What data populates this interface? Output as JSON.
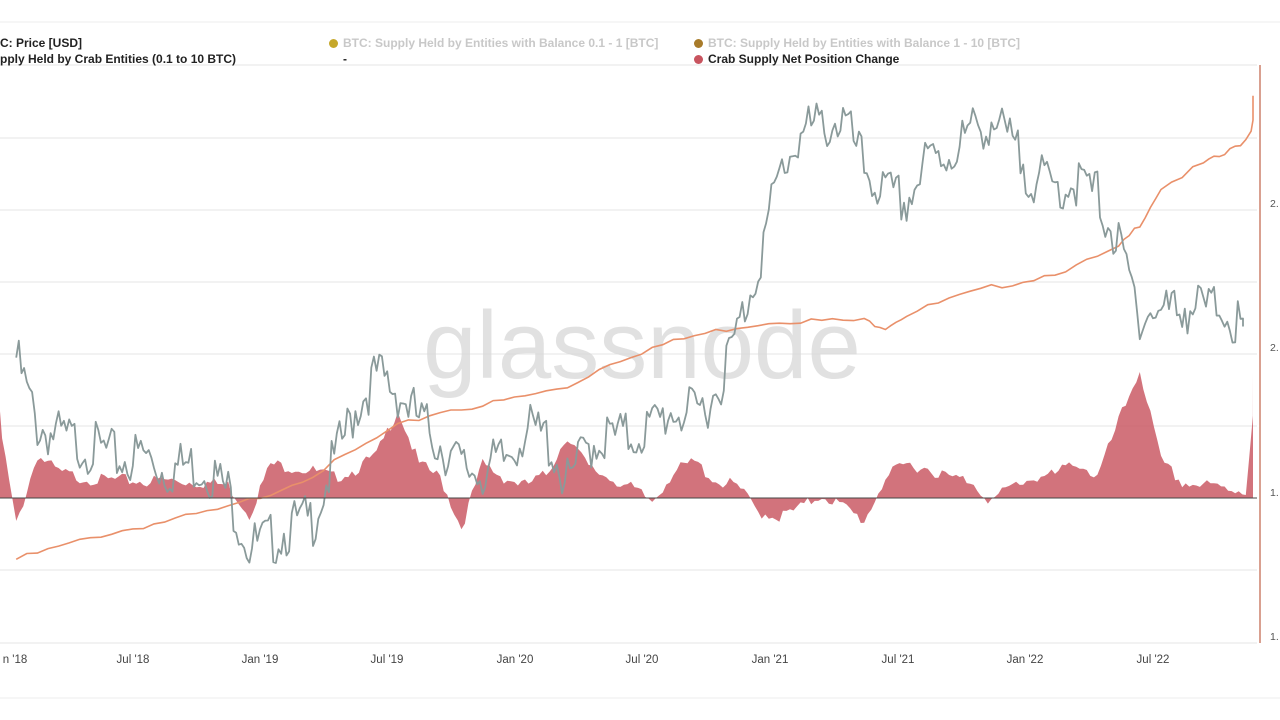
{
  "legend": {
    "price": "C: Price [USD]",
    "crab_supply": "pply Held by Crab Entities (0.1 to 10 BTC)",
    "bal_01_1": "BTC: Supply Held by Entities with Balance 0.1 - 1 [BTC]",
    "bal_1_10": "BTC: Supply Held by Entities with Balance 1 - 10 [BTC]",
    "net_change": "Crab Supply Net Position Change",
    "dash": "-"
  },
  "watermark": "glassnode",
  "colors": {
    "price": "#8a9a9a",
    "crab_supply": "#e9906a",
    "net_change": "#c8545f",
    "bal_01_1": "#c6a82b",
    "bal_1_10": "#a87b2a",
    "grid": "#e6e6e6",
    "axis_line": "#d9a090"
  },
  "chart_data": {
    "type": "area",
    "x_tick_labels": [
      "n '18",
      "Jul '18",
      "Jan '19",
      "Jul '19",
      "Jan '20",
      "Jul '20",
      "Jan '21",
      "Jul '21",
      "Jan '22",
      "Jul '22"
    ],
    "right_axis_tick_labels": [
      "2.",
      "2.",
      "1.",
      "1."
    ],
    "series": [
      {
        "name": "C: Price [USD]",
        "x": [
          "2018-01",
          "2018-02",
          "2018-03",
          "2018-04",
          "2018-05",
          "2018-06",
          "2018-07",
          "2018-08",
          "2018-09",
          "2018-10",
          "2018-11",
          "2018-12",
          "2019-01",
          "2019-02",
          "2019-03",
          "2019-04",
          "2019-05",
          "2019-06",
          "2019-07",
          "2019-08",
          "2019-09",
          "2019-10",
          "2019-11",
          "2019-12",
          "2020-01",
          "2020-02",
          "2020-03",
          "2020-04",
          "2020-05",
          "2020-06",
          "2020-07",
          "2020-08",
          "2020-09",
          "2020-10",
          "2020-11",
          "2020-12",
          "2021-01",
          "2021-02",
          "2021-03",
          "2021-04",
          "2021-05",
          "2021-06",
          "2021-07",
          "2021-08",
          "2021-09",
          "2021-10",
          "2021-11",
          "2021-12",
          "2022-01",
          "2022-02",
          "2022-03",
          "2022-04",
          "2022-05",
          "2022-06",
          "2022-07",
          "2022-08",
          "2022-09",
          "2022-10",
          "2022-11"
        ],
        "values": [
          0.65,
          0.45,
          0.42,
          0.4,
          0.38,
          0.35,
          0.37,
          0.32,
          0.34,
          0.33,
          0.26,
          0.1,
          0.12,
          0.16,
          0.18,
          0.35,
          0.5,
          0.6,
          0.55,
          0.47,
          0.4,
          0.33,
          0.32,
          0.35,
          0.44,
          0.42,
          0.28,
          0.4,
          0.42,
          0.42,
          0.45,
          0.5,
          0.48,
          0.55,
          0.72,
          0.92,
          1.18,
          1.3,
          1.32,
          1.34,
          1.2,
          1.12,
          1.1,
          1.22,
          1.24,
          1.3,
          1.34,
          1.26,
          1.17,
          1.14,
          1.16,
          1.12,
          0.97,
          0.78,
          0.78,
          0.8,
          0.79,
          0.8,
          0.7
        ]
      },
      {
        "name": "pply Held by Crab Entities (0.1 to 10 BTC)",
        "x": [
          "2018-01",
          "2018-03",
          "2018-05",
          "2018-07",
          "2018-09",
          "2018-11",
          "2019-01",
          "2019-03",
          "2019-05",
          "2019-07",
          "2019-09",
          "2019-11",
          "2020-01",
          "2020-03",
          "2020-05",
          "2020-07",
          "2020-09",
          "2020-11",
          "2021-01",
          "2021-03",
          "2021-05",
          "2021-06",
          "2021-07",
          "2021-09",
          "2021-11",
          "2022-01",
          "2022-03",
          "2022-05",
          "2022-06",
          "2022-07",
          "2022-09",
          "2022-10",
          "2022-11",
          "2022-12"
        ],
        "values": [
          0.09,
          0.13,
          0.17,
          0.2,
          0.23,
          0.26,
          0.31,
          0.37,
          0.45,
          0.53,
          0.58,
          0.6,
          0.63,
          0.66,
          0.74,
          0.79,
          0.83,
          0.86,
          0.88,
          0.88,
          0.88,
          0.86,
          0.9,
          0.95,
          0.99,
          1.02,
          1.06,
          1.12,
          1.2,
          1.32,
          1.4,
          1.43,
          1.48,
          1.62
        ]
      },
      {
        "name": "Crab Supply Net Position Change",
        "x": [
          "2017-12",
          "2018-01",
          "2018-02",
          "2018-03",
          "2018-04",
          "2018-05",
          "2018-06",
          "2018-07",
          "2018-08",
          "2018-09",
          "2018-10",
          "2018-11",
          "2018-12",
          "2019-01",
          "2019-02",
          "2019-03",
          "2019-04",
          "2019-05",
          "2019-06",
          "2019-07",
          "2019-08",
          "2019-09",
          "2019-10",
          "2019-11",
          "2019-12",
          "2020-01",
          "2020-02",
          "2020-03",
          "2020-04",
          "2020-05",
          "2020-06",
          "2020-07",
          "2020-08",
          "2020-09",
          "2020-10",
          "2020-11",
          "2020-12",
          "2021-01",
          "2021-02",
          "2021-03",
          "2021-04",
          "2021-05",
          "2021-06",
          "2021-07",
          "2021-08",
          "2021-09",
          "2021-10",
          "2021-11",
          "2021-12",
          "2022-01",
          "2022-02",
          "2022-03",
          "2022-04",
          "2022-05",
          "2022-06",
          "2022-07",
          "2022-08",
          "2022-09",
          "2022-10",
          "2022-11",
          "2022-12"
        ],
        "values": [
          0.8,
          -0.18,
          0.35,
          0.22,
          0.18,
          0.16,
          0.16,
          0.15,
          0.16,
          0.15,
          0.14,
          0.12,
          -0.1,
          0.28,
          0.26,
          0.23,
          0.18,
          0.24,
          0.35,
          0.7,
          0.28,
          0.18,
          -0.2,
          0.28,
          0.18,
          0.12,
          0.2,
          0.5,
          0.25,
          0.18,
          0.1,
          0.0,
          0.22,
          0.3,
          0.15,
          0.12,
          -0.08,
          -0.12,
          -0.05,
          0.05,
          -0.04,
          -0.15,
          0.18,
          0.28,
          0.25,
          0.18,
          0.16,
          0.0,
          0.12,
          0.18,
          0.2,
          0.3,
          0.18,
          0.6,
          1.0,
          0.3,
          0.14,
          0.12,
          0.1,
          0.08,
          1.8
        ]
      }
    ],
    "legend_only_series": [
      "BTC: Supply Held by Entities with Balance 0.1 - 1 [BTC]",
      "BTC: Supply Held by Entities with Balance 1 - 10 [BTC]"
    ],
    "grid": true,
    "legend_position": "top"
  }
}
